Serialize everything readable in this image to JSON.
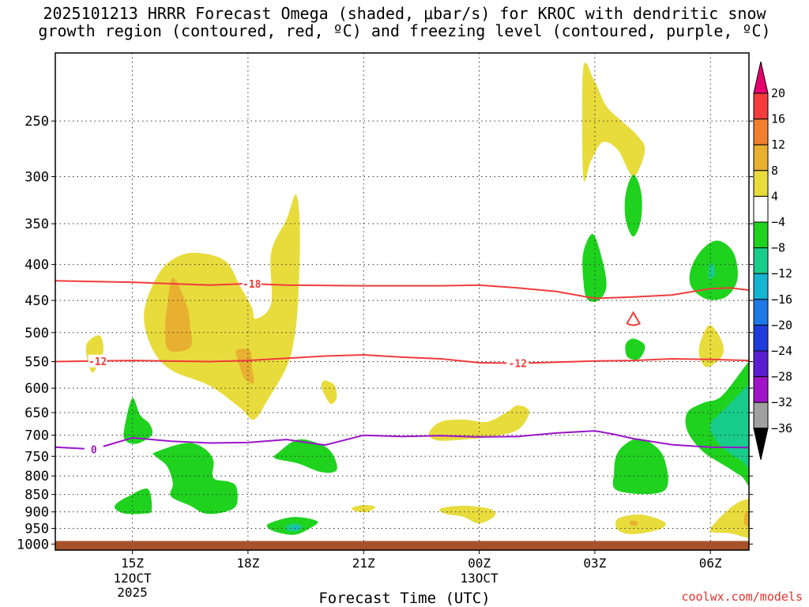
{
  "chart_data": {
    "type": "heatmap",
    "title_line1": "2025101213 HRRR Forecast Omega (shaded, μbar/s) for KROC with dendritic snow",
    "title_line2": "growth region (contoured, red, ºC) and freezing level (contoured, purple, ºC)",
    "xlabel": "Forecast Time (UTC)",
    "x_axis": {
      "type": "time",
      "range": [
        "2025-10-12T13:00Z",
        "2025-10-13T07:00Z"
      ],
      "ticks": [
        {
          "t": 15,
          "label": "15Z",
          "sub1": "12OCT",
          "sub2": "2025"
        },
        {
          "t": 18,
          "label": "18Z",
          "sub1": "",
          "sub2": ""
        },
        {
          "t": 21,
          "label": "21Z",
          "sub1": "",
          "sub2": ""
        },
        {
          "t": 24,
          "label": "00Z",
          "sub1": "13OCT",
          "sub2": ""
        },
        {
          "t": 27,
          "label": "03Z",
          "sub1": "",
          "sub2": ""
        },
        {
          "t": 30,
          "label": "06Z",
          "sub1": "",
          "sub2": ""
        }
      ]
    },
    "y_axis": {
      "label": "",
      "unit": "hPa",
      "scale": "pressure (log, inverted)",
      "range": [
        1020,
        200
      ],
      "ticks": [
        250,
        300,
        350,
        400,
        450,
        500,
        550,
        600,
        650,
        700,
        750,
        800,
        850,
        900,
        950,
        1000
      ]
    },
    "grid": "dotted horizontal at each pressure tick, dotted vertical at each time tick",
    "ground": {
      "below_hpa": 990,
      "color": "#a8522b"
    },
    "colorbar": {
      "placement": "right",
      "levels": [
        20,
        16,
        12,
        8,
        4,
        -4,
        -8,
        -12,
        -16,
        -20,
        -24,
        -28,
        -32,
        -36
      ],
      "labels": [
        "20",
        "16",
        "12",
        "8",
        "4",
        "−4",
        "−8",
        "−12",
        "−16",
        "−20",
        "−24",
        "−28",
        "−32",
        "−36"
      ],
      "colors_top_to_bottom": [
        "#e6006e",
        "#f43c3c",
        "#f08030",
        "#e8b030",
        "#e8dc3c",
        "#ffffff",
        "#1ed21e",
        "#18cc8c",
        "#14b4d2",
        "#1e78e6",
        "#1e3cdc",
        "#5a1ed2",
        "#a014c8",
        "#a0a0a0",
        "#000000"
      ]
    },
    "contours": [
      {
        "name": "-18",
        "color": "#f03c3c",
        "label_x": 18.1,
        "points": [
          [
            13,
            422
          ],
          [
            15,
            424
          ],
          [
            17,
            428
          ],
          [
            18,
            426
          ],
          [
            19,
            428
          ],
          [
            21,
            429
          ],
          [
            23,
            429
          ],
          [
            24,
            428
          ],
          [
            25,
            432
          ],
          [
            26,
            437
          ],
          [
            27,
            447
          ],
          [
            27.5,
            446
          ],
          [
            28,
            445
          ],
          [
            29,
            442
          ],
          [
            30,
            433
          ],
          [
            30.5,
            432
          ],
          [
            31,
            435
          ]
        ]
      },
      {
        "name": "-12",
        "color": "#f03c3c",
        "label_x": 14.1,
        "points": [
          [
            13,
            550
          ],
          [
            15,
            548
          ],
          [
            17,
            550
          ],
          [
            18,
            548
          ],
          [
            19,
            544
          ],
          [
            20,
            540
          ],
          [
            21,
            538
          ],
          [
            22,
            542
          ],
          [
            23,
            545
          ],
          [
            24,
            552
          ],
          [
            25,
            553
          ],
          [
            26,
            551
          ],
          [
            27,
            549
          ],
          [
            28,
            548
          ],
          [
            29,
            545
          ],
          [
            30,
            546
          ],
          [
            31,
            548
          ]
        ]
      },
      {
        "name": "-12",
        "color": "#f03c3c",
        "label_x": 25.0,
        "closed_ring_center": [
          28.0,
          478
        ]
      },
      {
        "name": "0",
        "color": "#9b14c8",
        "label_x": 14.0,
        "points": [
          [
            13,
            728
          ],
          [
            14,
            733
          ],
          [
            15,
            706
          ],
          [
            16,
            714
          ],
          [
            17,
            718
          ],
          [
            18,
            717
          ],
          [
            19,
            710
          ],
          [
            20,
            723
          ],
          [
            21,
            700
          ],
          [
            22,
            703
          ],
          [
            23,
            701
          ],
          [
            24,
            704
          ],
          [
            25,
            703
          ],
          [
            26,
            695
          ],
          [
            27,
            690
          ],
          [
            27.5,
            698
          ],
          [
            28,
            708
          ],
          [
            29,
            722
          ],
          [
            30,
            728
          ],
          [
            31,
            729
          ]
        ]
      }
    ],
    "shaded_regions": [
      {
        "value": 4,
        "color": "#e8dc3c",
        "label": "yellow"
      },
      {
        "value": 8,
        "color": "#e8b030",
        "label": "orange"
      },
      {
        "value": -4,
        "color": "#1ed21e",
        "label": "green"
      },
      {
        "value": -8,
        "color": "#18cc8c",
        "label": "teal"
      },
      {
        "value": -12,
        "color": "#14b4d2",
        "label": "cyan"
      }
    ]
  },
  "credit": "coolwx.com/models"
}
